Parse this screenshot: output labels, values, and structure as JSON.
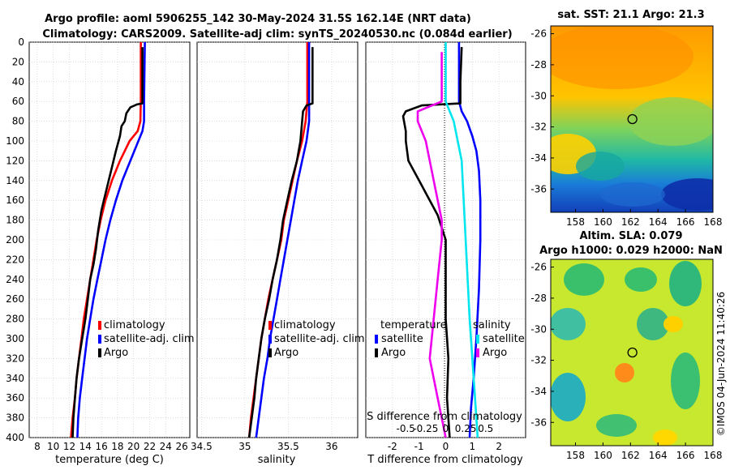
{
  "title": {
    "line1": "Argo profile: aoml 5906255_142 30-May-2024 31.5S 162.14E (NRT data)",
    "line2": "Climatology: CARS2009. Satellite-adj clim: synTS_20240530.nc (0.084d earlier)"
  },
  "credit": "©IMOS 04-Jun-2024 11:40:26",
  "colors": {
    "climatology": "#ff0000",
    "satellite": "#0000ff",
    "argo": "#000000",
    "cyan": "#00e5ee",
    "magenta": "#ee00ee"
  },
  "chart_data": [
    {
      "type": "line",
      "name": "temperature-profile",
      "xlabel": "temperature (deg C)",
      "ylabel": "",
      "xlim": [
        7,
        27
      ],
      "ylim": [
        400,
        0
      ],
      "xticks": [
        "8",
        "10",
        "12",
        "14",
        "16",
        "18",
        "20",
        "22",
        "24",
        "26"
      ],
      "yticks": [
        "0",
        "20",
        "40",
        "60",
        "80",
        "100",
        "120",
        "140",
        "160",
        "180",
        "200",
        "220",
        "240",
        "260",
        "280",
        "300",
        "320",
        "340",
        "360",
        "380",
        "400"
      ],
      "legend": [
        "climatology",
        "satellite-adj. clim",
        "Argo"
      ],
      "series": [
        {
          "name": "climatology",
          "color": "#ff0000",
          "points": [
            [
              20.9,
              0
            ],
            [
              20.9,
              60
            ],
            [
              20.85,
              80
            ],
            [
              20.5,
              90
            ],
            [
              19.5,
              100
            ],
            [
              18.3,
              120
            ],
            [
              17.3,
              140
            ],
            [
              16.5,
              160
            ],
            [
              15.9,
              180
            ],
            [
              15.4,
              200
            ],
            [
              15.0,
              220
            ],
            [
              14.6,
              240
            ],
            [
              14.2,
              260
            ],
            [
              13.8,
              280
            ],
            [
              13.5,
              300
            ],
            [
              13.2,
              320
            ],
            [
              12.9,
              340
            ],
            [
              12.7,
              360
            ],
            [
              12.4,
              380
            ],
            [
              12.2,
              400
            ]
          ]
        },
        {
          "name": "satellite-adj. clim",
          "color": "#0000ff",
          "points": [
            [
              21.4,
              0
            ],
            [
              21.3,
              60
            ],
            [
              21.3,
              80
            ],
            [
              21.1,
              90
            ],
            [
              20.6,
              100
            ],
            [
              19.6,
              120
            ],
            [
              18.6,
              140
            ],
            [
              17.8,
              160
            ],
            [
              17.1,
              180
            ],
            [
              16.5,
              200
            ],
            [
              16.0,
              220
            ],
            [
              15.5,
              240
            ],
            [
              15.0,
              260
            ],
            [
              14.6,
              280
            ],
            [
              14.2,
              300
            ],
            [
              13.9,
              320
            ],
            [
              13.6,
              340
            ],
            [
              13.3,
              360
            ],
            [
              13.1,
              380
            ],
            [
              13.0,
              400
            ]
          ]
        },
        {
          "name": "Argo",
          "color": "#000000",
          "points": [
            [
              21.1,
              5
            ],
            [
              21.1,
              62
            ],
            [
              20.4,
              63
            ],
            [
              19.6,
              66
            ],
            [
              19.1,
              72
            ],
            [
              18.9,
              80
            ],
            [
              18.5,
              85
            ],
            [
              18.3,
              95
            ],
            [
              17.8,
              110
            ],
            [
              17.2,
              130
            ],
            [
              16.6,
              150
            ],
            [
              16.0,
              170
            ],
            [
              15.6,
              190
            ],
            [
              15.3,
              210
            ],
            [
              15.0,
              225
            ],
            [
              14.6,
              240
            ],
            [
              14.3,
              260
            ],
            [
              14.0,
              280
            ],
            [
              13.6,
              300
            ],
            [
              13.2,
              320
            ],
            [
              12.9,
              340
            ],
            [
              12.7,
              360
            ],
            [
              12.5,
              380
            ],
            [
              12.4,
              400
            ]
          ]
        }
      ]
    },
    {
      "type": "line",
      "name": "salinity-profile",
      "xlabel": "salinity",
      "xlim": [
        34.45,
        36.3
      ],
      "ylim": [
        400,
        0
      ],
      "xticks": [
        "34.5",
        "35",
        "35.5",
        "36"
      ],
      "legend": [
        "climatology",
        "satellite-adj. clim",
        "Argo"
      ],
      "series": [
        {
          "name": "climatology",
          "color": "#ff0000",
          "points": [
            [
              35.72,
              0
            ],
            [
              35.72,
              60
            ],
            [
              35.7,
              80
            ],
            [
              35.66,
              100
            ],
            [
              35.6,
              120
            ],
            [
              35.55,
              140
            ],
            [
              35.5,
              160
            ],
            [
              35.45,
              180
            ],
            [
              35.42,
              200
            ],
            [
              35.37,
              220
            ],
            [
              35.32,
              240
            ],
            [
              35.27,
              260
            ],
            [
              35.23,
              280
            ],
            [
              35.19,
              300
            ],
            [
              35.16,
              320
            ],
            [
              35.13,
              340
            ],
            [
              35.1,
              360
            ],
            [
              35.07,
              380
            ],
            [
              35.05,
              400
            ]
          ]
        },
        {
          "name": "satellite-adj. clim",
          "color": "#0000ff",
          "points": [
            [
              35.74,
              0
            ],
            [
              35.74,
              60
            ],
            [
              35.74,
              80
            ],
            [
              35.71,
              100
            ],
            [
              35.66,
              120
            ],
            [
              35.61,
              140
            ],
            [
              35.57,
              160
            ],
            [
              35.53,
              180
            ],
            [
              35.49,
              200
            ],
            [
              35.45,
              220
            ],
            [
              35.41,
              240
            ],
            [
              35.37,
              260
            ],
            [
              35.33,
              280
            ],
            [
              35.29,
              300
            ],
            [
              35.26,
              320
            ],
            [
              35.22,
              340
            ],
            [
              35.19,
              360
            ],
            [
              35.16,
              380
            ],
            [
              35.13,
              400
            ]
          ]
        },
        {
          "name": "Argo",
          "color": "#000000",
          "points": [
            [
              35.78,
              5
            ],
            [
              35.78,
              62
            ],
            [
              35.71,
              64
            ],
            [
              35.67,
              70
            ],
            [
              35.66,
              80
            ],
            [
              35.64,
              100
            ],
            [
              35.6,
              120
            ],
            [
              35.54,
              140
            ],
            [
              35.49,
              160
            ],
            [
              35.44,
              180
            ],
            [
              35.41,
              200
            ],
            [
              35.37,
              220
            ],
            [
              35.32,
              240
            ],
            [
              35.28,
              260
            ],
            [
              35.23,
              280
            ],
            [
              35.19,
              300
            ],
            [
              35.16,
              320
            ],
            [
              35.13,
              340
            ],
            [
              35.11,
              360
            ],
            [
              35.08,
              380
            ],
            [
              35.05,
              400
            ]
          ]
        }
      ]
    },
    {
      "type": "line",
      "name": "difference-profile",
      "xlabel": "T difference from climatology",
      "xlabel_top": "S difference from climatology",
      "xlim": [
        -3,
        3
      ],
      "ylim": [
        400,
        0
      ],
      "xticks": [
        "-2",
        "-1",
        "0",
        "1",
        "2"
      ],
      "xticks_top": [
        "-0.5",
        "-0.25",
        "0",
        "0.25",
        "0.5"
      ],
      "legend_temperature": {
        "title": "temperature",
        "items": [
          "satellite",
          "Argo"
        ]
      },
      "legend_salinity": {
        "title": "salinity",
        "items": [
          "satellite",
          "Argo"
        ]
      },
      "series": [
        {
          "name": "temperature satellite",
          "color": "#0000ff",
          "points": [
            [
              0.5,
              0
            ],
            [
              0.5,
              60
            ],
            [
              0.6,
              70
            ],
            [
              0.8,
              80
            ],
            [
              1.0,
              95
            ],
            [
              1.15,
              110
            ],
            [
              1.25,
              130
            ],
            [
              1.3,
              160
            ],
            [
              1.3,
              200
            ],
            [
              1.25,
              250
            ],
            [
              1.15,
              300
            ],
            [
              1.05,
              340
            ],
            [
              0.95,
              370
            ],
            [
              0.9,
              400
            ]
          ]
        },
        {
          "name": "temperature Argo",
          "color": "#000000",
          "points": [
            [
              0.6,
              5
            ],
            [
              0.55,
              40
            ],
            [
              0.55,
              62
            ],
            [
              -0.9,
              64
            ],
            [
              -1.5,
              70
            ],
            [
              -1.6,
              75
            ],
            [
              -1.5,
              90
            ],
            [
              -1.5,
              100
            ],
            [
              -1.4,
              120
            ],
            [
              -1.0,
              140
            ],
            [
              -0.6,
              160
            ],
            [
              -0.3,
              175
            ],
            [
              0,
              200
            ],
            [
              0,
              240
            ],
            [
              0.0,
              280
            ],
            [
              0.1,
              320
            ],
            [
              0.05,
              360
            ],
            [
              0.15,
              400
            ]
          ]
        },
        {
          "name": "salinity satellite",
          "color": "#00e5ee",
          "points": [
            [
              0,
              0
            ],
            [
              0,
              60
            ],
            [
              0.1,
              80
            ],
            [
              0.2,
              120
            ],
            [
              0.25,
              200
            ],
            [
              0.3,
              280
            ],
            [
              0.35,
              340
            ],
            [
              0.4,
              400
            ]
          ]
        },
        {
          "name": "salinity Argo",
          "color": "#ee00ee",
          "points": [
            [
              -0.05,
              10
            ],
            [
              -0.05,
              60
            ],
            [
              -0.35,
              70
            ],
            [
              -0.35,
              80
            ],
            [
              -0.25,
              100
            ],
            [
              -0.15,
              140
            ],
            [
              -0.05,
              180
            ],
            [
              -0.05,
              200
            ],
            [
              -0.1,
              240
            ],
            [
              -0.15,
              280
            ],
            [
              -0.2,
              320
            ],
            [
              -0.1,
              360
            ],
            [
              0.0,
              400
            ]
          ]
        }
      ]
    },
    {
      "type": "heatmap",
      "name": "sst-map",
      "title": "sat. SST: 21.1 Argo: 21.3",
      "xticks": [
        "158",
        "160",
        "162",
        "164",
        "166",
        "168"
      ],
      "yticks": [
        "-26",
        "-28",
        "-30",
        "-32",
        "-34",
        "-36"
      ],
      "xlim": [
        156.2,
        168
      ],
      "ylim": [
        -37.5,
        -25.5
      ],
      "argo_position": [
        162.14,
        -31.5
      ]
    },
    {
      "type": "heatmap",
      "name": "sla-map",
      "title_line1": "Altim. SLA: 0.079",
      "title_line2": "Argo h1000: 0.029 h2000: NaN",
      "xticks": [
        "158",
        "160",
        "162",
        "164",
        "166",
        "168"
      ],
      "yticks": [
        "-26",
        "-28",
        "-30",
        "-32",
        "-34",
        "-36"
      ],
      "xlim": [
        156.2,
        168
      ],
      "ylim": [
        -37.5,
        -25.5
      ],
      "argo_position": [
        162.14,
        -31.5
      ]
    }
  ]
}
